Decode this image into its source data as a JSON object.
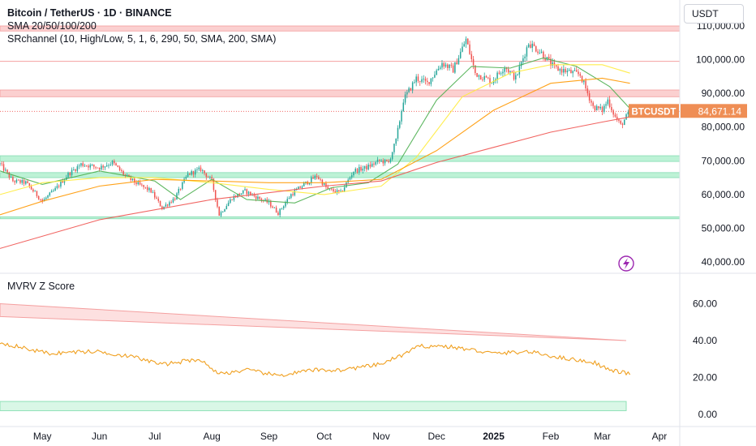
{
  "header": {
    "title": "Bitcoin / TetherUS · 1D · BINANCE",
    "indicator_sma": "SMA 20/50/100/200",
    "indicator_srchannel": "SRchannel (10, High/Low, 5, 1, 6, 290, 50, SMA, 200, SMA)",
    "currency": "USDT"
  },
  "colors": {
    "up": "#26a69a",
    "down": "#ef5350",
    "sma20": "#4caf50",
    "sma50": "#ffeb3b",
    "sma100": "#ff9800",
    "sma200": "#ef5350",
    "zscore": "#f0a020",
    "resistance_zone": "#fbc8c8",
    "support_zone": "#b2f0d0",
    "price_label_bg": "#ef8e55"
  },
  "price_label": {
    "symbol": "BTCUSDT",
    "price": "84,671.14"
  },
  "chart_data": [
    {
      "type": "candlestick",
      "title": "Bitcoin / TetherUS · 1D · BINANCE",
      "ylim": [
        35000,
        112000
      ],
      "y_ticks": [
        {
          "value": 110000,
          "label": "110,000.00"
        },
        {
          "value": 100000,
          "label": "100,000.00"
        },
        {
          "value": 90000,
          "label": "90,000.00"
        },
        {
          "value": 80000,
          "label": "80,000.00"
        },
        {
          "value": 70000,
          "label": "70,000.00"
        },
        {
          "value": 60000,
          "label": "60,000.00"
        },
        {
          "value": 50000,
          "label": "50,000.00"
        },
        {
          "value": 40000,
          "label": "40,000.00"
        }
      ],
      "x_ticks": [
        "May",
        "Jun",
        "Jul",
        "Aug",
        "Sep",
        "Oct",
        "Nov",
        "Dec",
        "2025",
        "Feb",
        "Mar",
        "Apr"
      ],
      "close_path": [
        [
          "2024-04-08",
          69000
        ],
        [
          "2024-04-15",
          64000
        ],
        [
          "2024-04-22",
          63500
        ],
        [
          "2024-05-01",
          58000
        ],
        [
          "2024-05-08",
          61500
        ],
        [
          "2024-05-15",
          66000
        ],
        [
          "2024-05-22",
          69000
        ],
        [
          "2024-06-01",
          68000
        ],
        [
          "2024-06-08",
          69500
        ],
        [
          "2024-06-15",
          65500
        ],
        [
          "2024-06-22",
          63000
        ],
        [
          "2024-06-29",
          61000
        ],
        [
          "2024-07-05",
          56000
        ],
        [
          "2024-07-12",
          59000
        ],
        [
          "2024-07-19",
          66000
        ],
        [
          "2024-07-26",
          67500
        ],
        [
          "2024-08-01",
          64000
        ],
        [
          "2024-08-05",
          54000
        ],
        [
          "2024-08-12",
          59000
        ],
        [
          "2024-08-19",
          61000
        ],
        [
          "2024-08-26",
          59000
        ],
        [
          "2024-09-01",
          57500
        ],
        [
          "2024-09-06",
          54500
        ],
        [
          "2024-09-13",
          60000
        ],
        [
          "2024-09-20",
          63000
        ],
        [
          "2024-09-27",
          65500
        ],
        [
          "2024-10-03",
          61500
        ],
        [
          "2024-10-10",
          60500
        ],
        [
          "2024-10-17",
          67000
        ],
        [
          "2024-10-24",
          68000
        ],
        [
          "2024-10-31",
          70000
        ],
        [
          "2024-11-05",
          69500
        ],
        [
          "2024-11-09",
          76000
        ],
        [
          "2024-11-13",
          88000
        ],
        [
          "2024-11-20",
          94500
        ],
        [
          "2024-11-26",
          93000
        ],
        [
          "2024-12-04",
          99000
        ],
        [
          "2024-12-10",
          97000
        ],
        [
          "2024-12-17",
          106000
        ],
        [
          "2024-12-22",
          96000
        ],
        [
          "2024-12-31",
          93500
        ],
        [
          "2025-01-07",
          98000
        ],
        [
          "2025-01-13",
          94500
        ],
        [
          "2025-01-20",
          105000
        ],
        [
          "2025-01-27",
          102000
        ],
        [
          "2025-02-03",
          97500
        ],
        [
          "2025-02-10",
          96500
        ],
        [
          "2025-02-17",
          95500
        ],
        [
          "2025-02-24",
          86000
        ],
        [
          "2025-03-01",
          85000
        ],
        [
          "2025-03-04",
          88000
        ],
        [
          "2025-03-08",
          83000
        ],
        [
          "2025-03-11",
          80500
        ],
        [
          "2025-03-16",
          84671
        ]
      ],
      "series": [
        {
          "name": "SMA 20",
          "values": [
            [
              "2024-04-08",
              67000
            ],
            [
              "2024-05-01",
              63000
            ],
            [
              "2024-06-01",
              67000
            ],
            [
              "2024-07-01",
              64000
            ],
            [
              "2024-07-15",
              58500
            ],
            [
              "2024-08-01",
              64500
            ],
            [
              "2024-08-20",
              58500
            ],
            [
              "2024-09-15",
              57500
            ],
            [
              "2024-10-05",
              62000
            ],
            [
              "2024-10-25",
              63500
            ],
            [
              "2024-11-10",
              69000
            ],
            [
              "2024-12-01",
              88000
            ],
            [
              "2024-12-20",
              98000
            ],
            [
              "2025-01-10",
              97500
            ],
            [
              "2025-01-28",
              100500
            ],
            [
              "2025-02-15",
              98000
            ],
            [
              "2025-03-05",
              92000
            ],
            [
              "2025-03-16",
              85500
            ]
          ]
        },
        {
          "name": "SMA 50",
          "values": [
            [
              "2024-04-08",
              60000
            ],
            [
              "2024-05-01",
              63500
            ],
            [
              "2024-06-01",
              65000
            ],
            [
              "2024-07-01",
              65000
            ],
            [
              "2024-08-01",
              63500
            ],
            [
              "2024-09-01",
              61500
            ],
            [
              "2024-10-01",
              60000
            ],
            [
              "2024-11-01",
              62500
            ],
            [
              "2024-11-20",
              71000
            ],
            [
              "2024-12-15",
              89000
            ],
            [
              "2025-01-10",
              96000
            ],
            [
              "2025-02-01",
              98500
            ],
            [
              "2025-03-01",
              98500
            ],
            [
              "2025-03-16",
              96000
            ]
          ]
        },
        {
          "name": "SMA 100",
          "values": [
            [
              "2024-04-08",
              54000
            ],
            [
              "2024-05-01",
              58000
            ],
            [
              "2024-06-01",
              62500
            ],
            [
              "2024-07-01",
              64500
            ],
            [
              "2024-08-01",
              64000
            ],
            [
              "2024-09-01",
              63500
            ],
            [
              "2024-10-01",
              63500
            ],
            [
              "2024-11-01",
              64500
            ],
            [
              "2024-12-01",
              73000
            ],
            [
              "2025-01-01",
              85000
            ],
            [
              "2025-02-01",
              93000
            ],
            [
              "2025-03-01",
              94500
            ],
            [
              "2025-03-16",
              93000
            ]
          ]
        },
        {
          "name": "SMA 200",
          "values": [
            [
              "2024-04-08",
              44000
            ],
            [
              "2024-06-01",
              52500
            ],
            [
              "2024-08-01",
              58500
            ],
            [
              "2024-10-01",
              62500
            ],
            [
              "2024-11-01",
              64000
            ],
            [
              "2024-12-01",
              69500
            ],
            [
              "2025-01-01",
              74000
            ],
            [
              "2025-02-01",
              78500
            ],
            [
              "2025-03-01",
              81500
            ],
            [
              "2025-03-16",
              83000
            ]
          ]
        }
      ],
      "zones": [
        {
          "kind": "resistance",
          "from": 108500,
          "to": 110000
        },
        {
          "kind": "resistance",
          "from": 89000,
          "to": 91000
        },
        {
          "kind": "support",
          "from": 69800,
          "to": 71500
        },
        {
          "kind": "support",
          "from": 65000,
          "to": 66500
        },
        {
          "kind": "support",
          "from": 52800,
          "to": 53400
        }
      ],
      "lines": [
        {
          "kind": "resistance",
          "value": 99500
        },
        {
          "kind": "current-price",
          "value": 84671
        }
      ],
      "last_price": 84671.14
    },
    {
      "type": "line",
      "title": "MVRV Z Score",
      "ylim": [
        -1,
        67
      ],
      "y_ticks": [
        {
          "value": 60,
          "label": "60.00"
        },
        {
          "value": 40,
          "label": "40.00"
        },
        {
          "value": 20,
          "label": "20.00"
        },
        {
          "value": 0,
          "label": "0.00"
        }
      ],
      "values": [
        [
          "2024-04-08",
          39
        ],
        [
          "2024-04-25",
          35
        ],
        [
          "2024-05-05",
          33
        ],
        [
          "2024-05-22",
          34
        ],
        [
          "2024-06-01",
          34
        ],
        [
          "2024-06-20",
          31
        ],
        [
          "2024-07-05",
          27
        ],
        [
          "2024-07-25",
          30
        ],
        [
          "2024-08-05",
          22
        ],
        [
          "2024-08-20",
          24
        ],
        [
          "2024-09-06",
          21
        ],
        [
          "2024-09-25",
          24
        ],
        [
          "2024-10-10",
          24
        ],
        [
          "2024-10-31",
          27
        ],
        [
          "2024-11-12",
          32
        ],
        [
          "2024-11-22",
          37
        ],
        [
          "2024-12-05",
          37
        ],
        [
          "2024-12-20",
          35
        ],
        [
          "2025-01-01",
          33
        ],
        [
          "2025-01-20",
          34
        ],
        [
          "2025-02-05",
          31
        ],
        [
          "2025-02-25",
          28
        ],
        [
          "2025-03-05",
          24
        ],
        [
          "2025-03-16",
          22
        ]
      ],
      "zones": [
        {
          "kind": "overvalued",
          "from_start": [
            53,
            60
          ],
          "to_start": [
            40,
            40
          ]
        },
        {
          "kind": "undervalued",
          "from": 2,
          "to": 7
        }
      ]
    }
  ]
}
